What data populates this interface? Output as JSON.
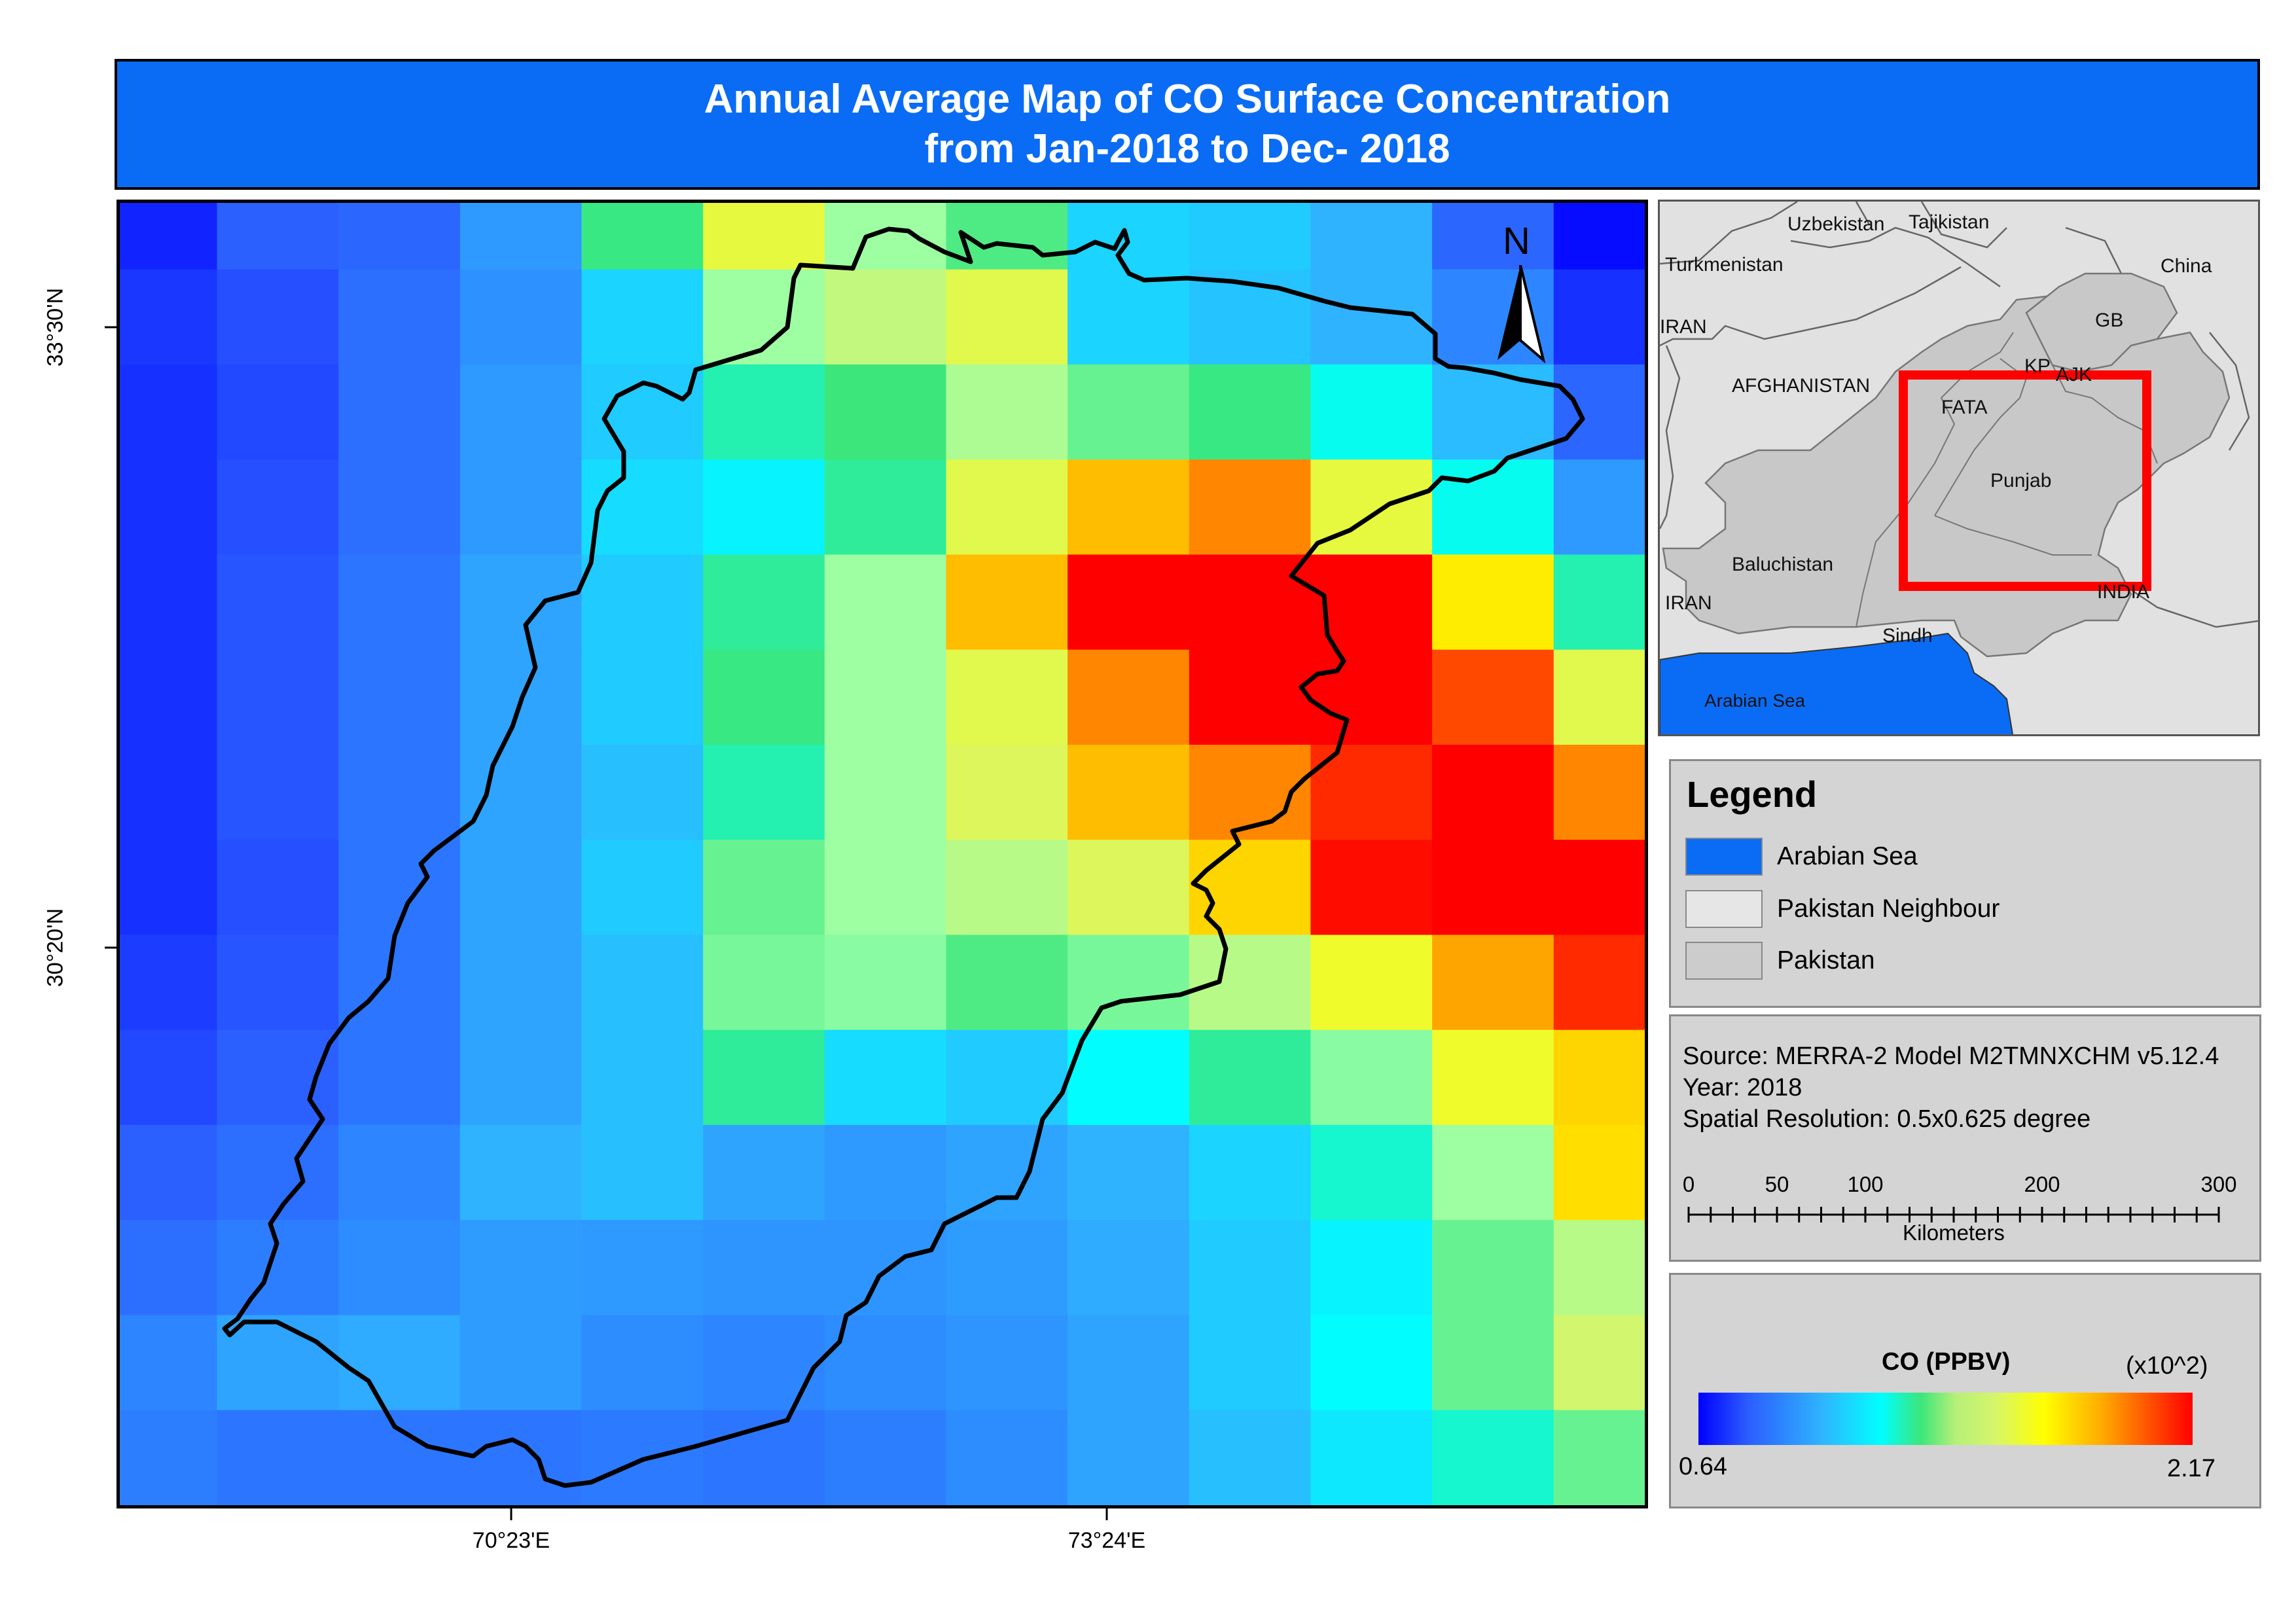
{
  "title": {
    "line1": "Annual Average Map of CO Surface Concentration",
    "line2": "from  Jan-2018 to Dec- 2018"
  },
  "graticule": {
    "lat_labels": [
      "33°30'N",
      "30°20'N"
    ],
    "lon_labels": [
      "70°23'E",
      "73°24'E"
    ]
  },
  "north_arrow": {
    "label": "N",
    "icon": "north-arrow-icon"
  },
  "inset": {
    "labels": [
      "Uzbekistan",
      "Tajikistan",
      "Turkmenistan",
      "China",
      "IRAN",
      "GB",
      "KP",
      "AJK",
      "AFGHANISTAN",
      "FATA",
      "Punjab",
      "Baluchistan",
      "IRAN",
      "INDIA",
      "Sindh",
      "Arabian Sea"
    ],
    "colors": {
      "neighbour": "#e1e1e1",
      "pakistan": "#c8c8c8",
      "sea": "#0a6cf5",
      "extent": "#ff0000"
    }
  },
  "legend": {
    "title": "Legend",
    "items": [
      {
        "label": "Arabian Sea",
        "color": "#0a6cf5"
      },
      {
        "label": "Pakistan Neighbour",
        "color": "#e6e6e6"
      },
      {
        "label": "Pakistan",
        "color": "#cccccc"
      }
    ]
  },
  "info": {
    "source": "Source: MERRA-2 Model M2TMNXCHM v5.12.4",
    "year": "Year: 2018",
    "resolution": "Spatial Resolution: 0.5x0.625 degree"
  },
  "scale_bar": {
    "ticks": [
      "0",
      "50",
      "100",
      "200",
      "300"
    ],
    "tick_values": [
      0,
      50,
      100,
      200,
      300
    ],
    "unit": "Kilometers"
  },
  "colorbar": {
    "title": "CO (PPBV)",
    "multiplier": "(x10^2)",
    "min_label": "0.64",
    "max_label": "2.17",
    "min": 0.64,
    "max": 2.17
  },
  "chart_data": {
    "type": "heatmap",
    "title": "Annual Average Map of CO Surface Concentration from  Jan-2018 to Dec- 2018",
    "unit": "CO (PPBV) x10^2",
    "range": [
      0.64,
      2.17
    ],
    "grid": [
      [
        0.7,
        0.8,
        0.82,
        0.95,
        1.32,
        1.62,
        1.45,
        1.35,
        1.1,
        1.08,
        1.02,
        0.82,
        0.66
      ],
      [
        0.73,
        0.77,
        0.84,
        0.93,
        1.1,
        1.45,
        1.52,
        1.6,
        1.1,
        1.06,
        1.02,
        0.9,
        0.72
      ],
      [
        0.72,
        0.76,
        0.84,
        0.95,
        1.08,
        1.28,
        1.33,
        1.48,
        1.38,
        1.32,
        1.22,
        1.04,
        0.82
      ],
      [
        0.72,
        0.77,
        0.84,
        0.95,
        1.12,
        1.18,
        1.3,
        1.6,
        1.85,
        1.95,
        1.62,
        1.22,
        0.95
      ],
      [
        0.72,
        0.78,
        0.86,
        0.98,
        1.08,
        1.3,
        1.45,
        1.85,
        2.17,
        2.17,
        2.17,
        1.75,
        1.28
      ],
      [
        0.72,
        0.78,
        0.86,
        0.98,
        1.08,
        1.32,
        1.45,
        1.6,
        1.95,
        2.17,
        2.17,
        2.05,
        1.6
      ],
      [
        0.72,
        0.78,
        0.86,
        0.98,
        1.05,
        1.28,
        1.45,
        1.58,
        1.85,
        1.95,
        2.1,
        2.17,
        1.95
      ],
      [
        0.72,
        0.77,
        0.86,
        0.98,
        1.08,
        1.38,
        1.45,
        1.5,
        1.58,
        1.8,
        2.15,
        2.17,
        2.17
      ],
      [
        0.74,
        0.78,
        0.86,
        0.98,
        1.05,
        1.4,
        1.42,
        1.35,
        1.4,
        1.5,
        1.65,
        1.9,
        2.1
      ],
      [
        0.76,
        0.8,
        0.86,
        0.98,
        1.05,
        1.3,
        1.12,
        1.08,
        1.2,
        1.3,
        1.42,
        1.65,
        1.8
      ],
      [
        0.8,
        0.84,
        0.9,
        1.02,
        1.05,
        0.98,
        0.95,
        0.98,
        1.02,
        1.1,
        1.25,
        1.45,
        1.78
      ],
      [
        0.84,
        0.88,
        0.92,
        0.96,
        0.95,
        0.94,
        0.94,
        0.96,
        1.0,
        1.08,
        1.18,
        1.38,
        1.5
      ],
      [
        0.9,
        0.98,
        1.0,
        0.96,
        0.92,
        0.9,
        0.92,
        0.94,
        0.98,
        1.08,
        1.2,
        1.38,
        1.55
      ],
      [
        0.88,
        0.86,
        0.86,
        0.86,
        0.87,
        0.86,
        0.88,
        0.92,
        0.98,
        1.05,
        1.15,
        1.25,
        1.38
      ]
    ]
  }
}
